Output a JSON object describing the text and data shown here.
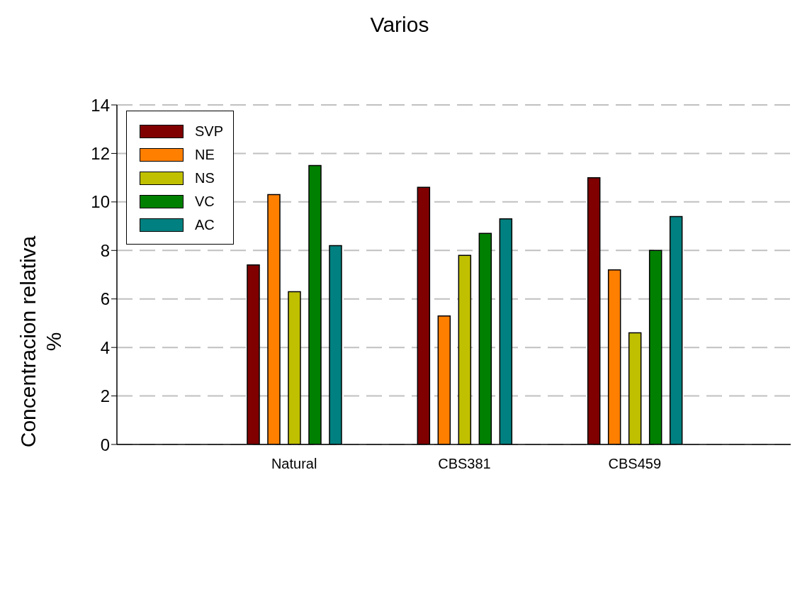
{
  "chart_data": {
    "type": "bar",
    "title": "Varios",
    "ylabel": "Concentracion relativa\n%",
    "categories": [
      "Natural",
      "CBS381",
      "CBS459"
    ],
    "series": [
      {
        "name": "SVP",
        "color": "#800000",
        "values": [
          7.4,
          10.6,
          11.0
        ]
      },
      {
        "name": "NE",
        "color": "#ff8000",
        "values": [
          10.3,
          5.3,
          7.2
        ]
      },
      {
        "name": "NS",
        "color": "#c0c000",
        "values": [
          6.3,
          7.8,
          4.6
        ]
      },
      {
        "name": "VC",
        "color": "#008000",
        "values": [
          11.5,
          8.7,
          8.0
        ]
      },
      {
        "name": "AC",
        "color": "#008080",
        "values": [
          8.2,
          9.3,
          9.4
        ]
      }
    ],
    "ylim": [
      0,
      14
    ],
    "yticks": [
      0,
      2,
      4,
      6,
      8,
      10,
      12,
      14
    ],
    "grid": "y",
    "legend": "top left"
  }
}
